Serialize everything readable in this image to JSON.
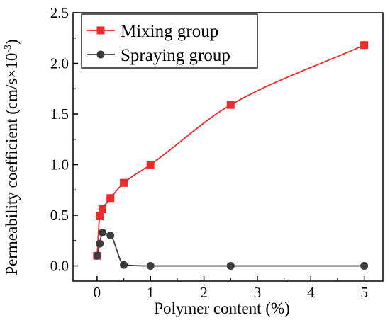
{
  "chart_data": {
    "type": "line",
    "xlabel": "Polymer content (%)",
    "ylabel": "Permeability coefficient (cm/s×10",
    "ylabel_superscript": "-3",
    "ylabel_close": ")",
    "xlim": [
      -0.45,
      5.35
    ],
    "ylim": [
      -0.15,
      2.5
    ],
    "xticks": [
      0,
      1,
      2,
      3,
      4,
      5
    ],
    "xtick_labels": [
      "0",
      "1",
      "2",
      "3",
      "4",
      "5"
    ],
    "yticks": [
      0.0,
      0.5,
      1.0,
      1.5,
      2.0,
      2.5
    ],
    "ytick_labels": [
      "0.0",
      "0.5",
      "1.0",
      "1.5",
      "2.0",
      "2.5"
    ],
    "grid": false,
    "legend_position": "top-left",
    "series": [
      {
        "name": "Mixing group",
        "color": "#ee2a2a",
        "marker": "square",
        "x": [
          0,
          0.05,
          0.1,
          0.25,
          0.5,
          1,
          2.5,
          5
        ],
        "y": [
          0.1,
          0.49,
          0.56,
          0.67,
          0.82,
          1.0,
          1.59,
          2.18
        ]
      },
      {
        "name": "Spraying group",
        "color": "#3c3c3c",
        "marker": "circle",
        "x": [
          0,
          0.05,
          0.1,
          0.25,
          0.5,
          1,
          2.5,
          5
        ],
        "y": [
          0.1,
          0.22,
          0.33,
          0.3,
          0.01,
          0.0,
          0.0,
          0.0
        ]
      }
    ]
  }
}
